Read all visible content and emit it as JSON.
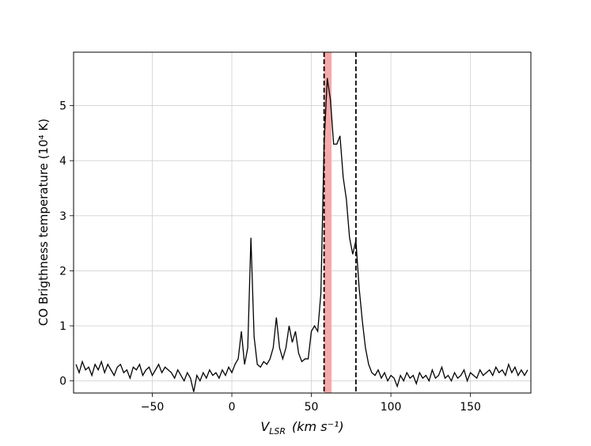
{
  "chart_data": {
    "type": "line",
    "ylabel": "CO Brigthness temperature (10⁴ K)",
    "xlabel": {
      "symbol": "V",
      "subscript": "LSR",
      "unit": "(km s⁻¹)"
    },
    "xlim": [
      -99.5,
      188
    ],
    "ylim": [
      -0.22,
      5.97
    ],
    "xticks": [
      {
        "value": -50,
        "label": "−50"
      },
      0,
      50,
      100,
      150
    ],
    "yticks": [
      0,
      1,
      2,
      3,
      4,
      5
    ],
    "grid": true,
    "color": "#000000",
    "vlines": [
      58,
      78
    ],
    "vline_color": "#000000",
    "span": [
      58,
      62.7
    ],
    "span_color": "#f4a0a0",
    "x": [
      -98,
      -96,
      -94,
      -92,
      -90,
      -88,
      -86,
      -84,
      -82,
      -80,
      -78,
      -76,
      -74,
      -72,
      -70,
      -68,
      -66,
      -64,
      -62,
      -60,
      -58,
      -56,
      -54,
      -52,
      -50,
      -48,
      -46,
      -44,
      -42,
      -40,
      -38,
      -36,
      -34,
      -32,
      -30,
      -28,
      -26,
      -24,
      -22,
      -20,
      -18,
      -16,
      -14,
      -12,
      -10,
      -8,
      -6,
      -4,
      -2,
      0,
      2,
      4,
      6,
      8,
      10,
      12,
      14,
      16,
      18,
      20,
      22,
      24,
      26,
      28,
      30,
      32,
      34,
      36,
      38,
      40,
      42,
      44,
      46,
      48,
      50,
      52,
      54,
      56,
      58,
      60,
      62,
      64,
      66,
      68,
      70,
      72,
      74,
      76,
      78,
      80,
      82,
      84,
      86,
      88,
      90,
      92,
      94,
      96,
      98,
      100,
      102,
      104,
      106,
      108,
      110,
      112,
      114,
      116,
      118,
      120,
      122,
      124,
      126,
      128,
      130,
      132,
      134,
      136,
      138,
      140,
      142,
      144,
      146,
      148,
      150,
      152,
      154,
      156,
      158,
      160,
      162,
      164,
      166,
      168,
      170,
      172,
      174,
      176,
      178,
      180,
      182,
      184,
      186
    ],
    "values": [
      0.3,
      0.15,
      0.35,
      0.2,
      0.25,
      0.1,
      0.3,
      0.2,
      0.35,
      0.15,
      0.3,
      0.2,
      0.1,
      0.25,
      0.3,
      0.15,
      0.2,
      0.05,
      0.25,
      0.2,
      0.3,
      0.1,
      0.2,
      0.25,
      0.1,
      0.2,
      0.3,
      0.15,
      0.25,
      0.2,
      0.15,
      0.05,
      0.2,
      0.1,
      0.0,
      0.15,
      0.05,
      -0.2,
      0.1,
      0.0,
      0.15,
      0.05,
      0.2,
      0.1,
      0.15,
      0.05,
      0.2,
      0.1,
      0.25,
      0.15,
      0.3,
      0.4,
      0.9,
      0.3,
      0.6,
      2.6,
      0.8,
      0.3,
      0.25,
      0.35,
      0.3,
      0.4,
      0.6,
      1.15,
      0.6,
      0.4,
      0.6,
      1.0,
      0.7,
      0.9,
      0.5,
      0.35,
      0.4,
      0.4,
      0.9,
      1.0,
      0.9,
      1.6,
      4.3,
      5.5,
      5.1,
      4.3,
      4.3,
      4.45,
      3.7,
      3.3,
      2.6,
      2.3,
      2.55,
      1.7,
      1.1,
      0.6,
      0.3,
      0.15,
      0.1,
      0.2,
      0.05,
      0.15,
      0.0,
      0.1,
      0.05,
      -0.1,
      0.1,
      0.0,
      0.15,
      0.05,
      0.1,
      -0.05,
      0.15,
      0.05,
      0.1,
      0.0,
      0.2,
      0.05,
      0.1,
      0.25,
      0.05,
      0.1,
      0.0,
      0.15,
      0.05,
      0.1,
      0.2,
      0.0,
      0.15,
      0.1,
      0.05,
      0.2,
      0.1,
      0.15,
      0.2,
      0.1,
      0.25,
      0.15,
      0.2,
      0.1,
      0.3,
      0.15,
      0.25,
      0.1,
      0.2,
      0.1,
      0.2
    ]
  }
}
